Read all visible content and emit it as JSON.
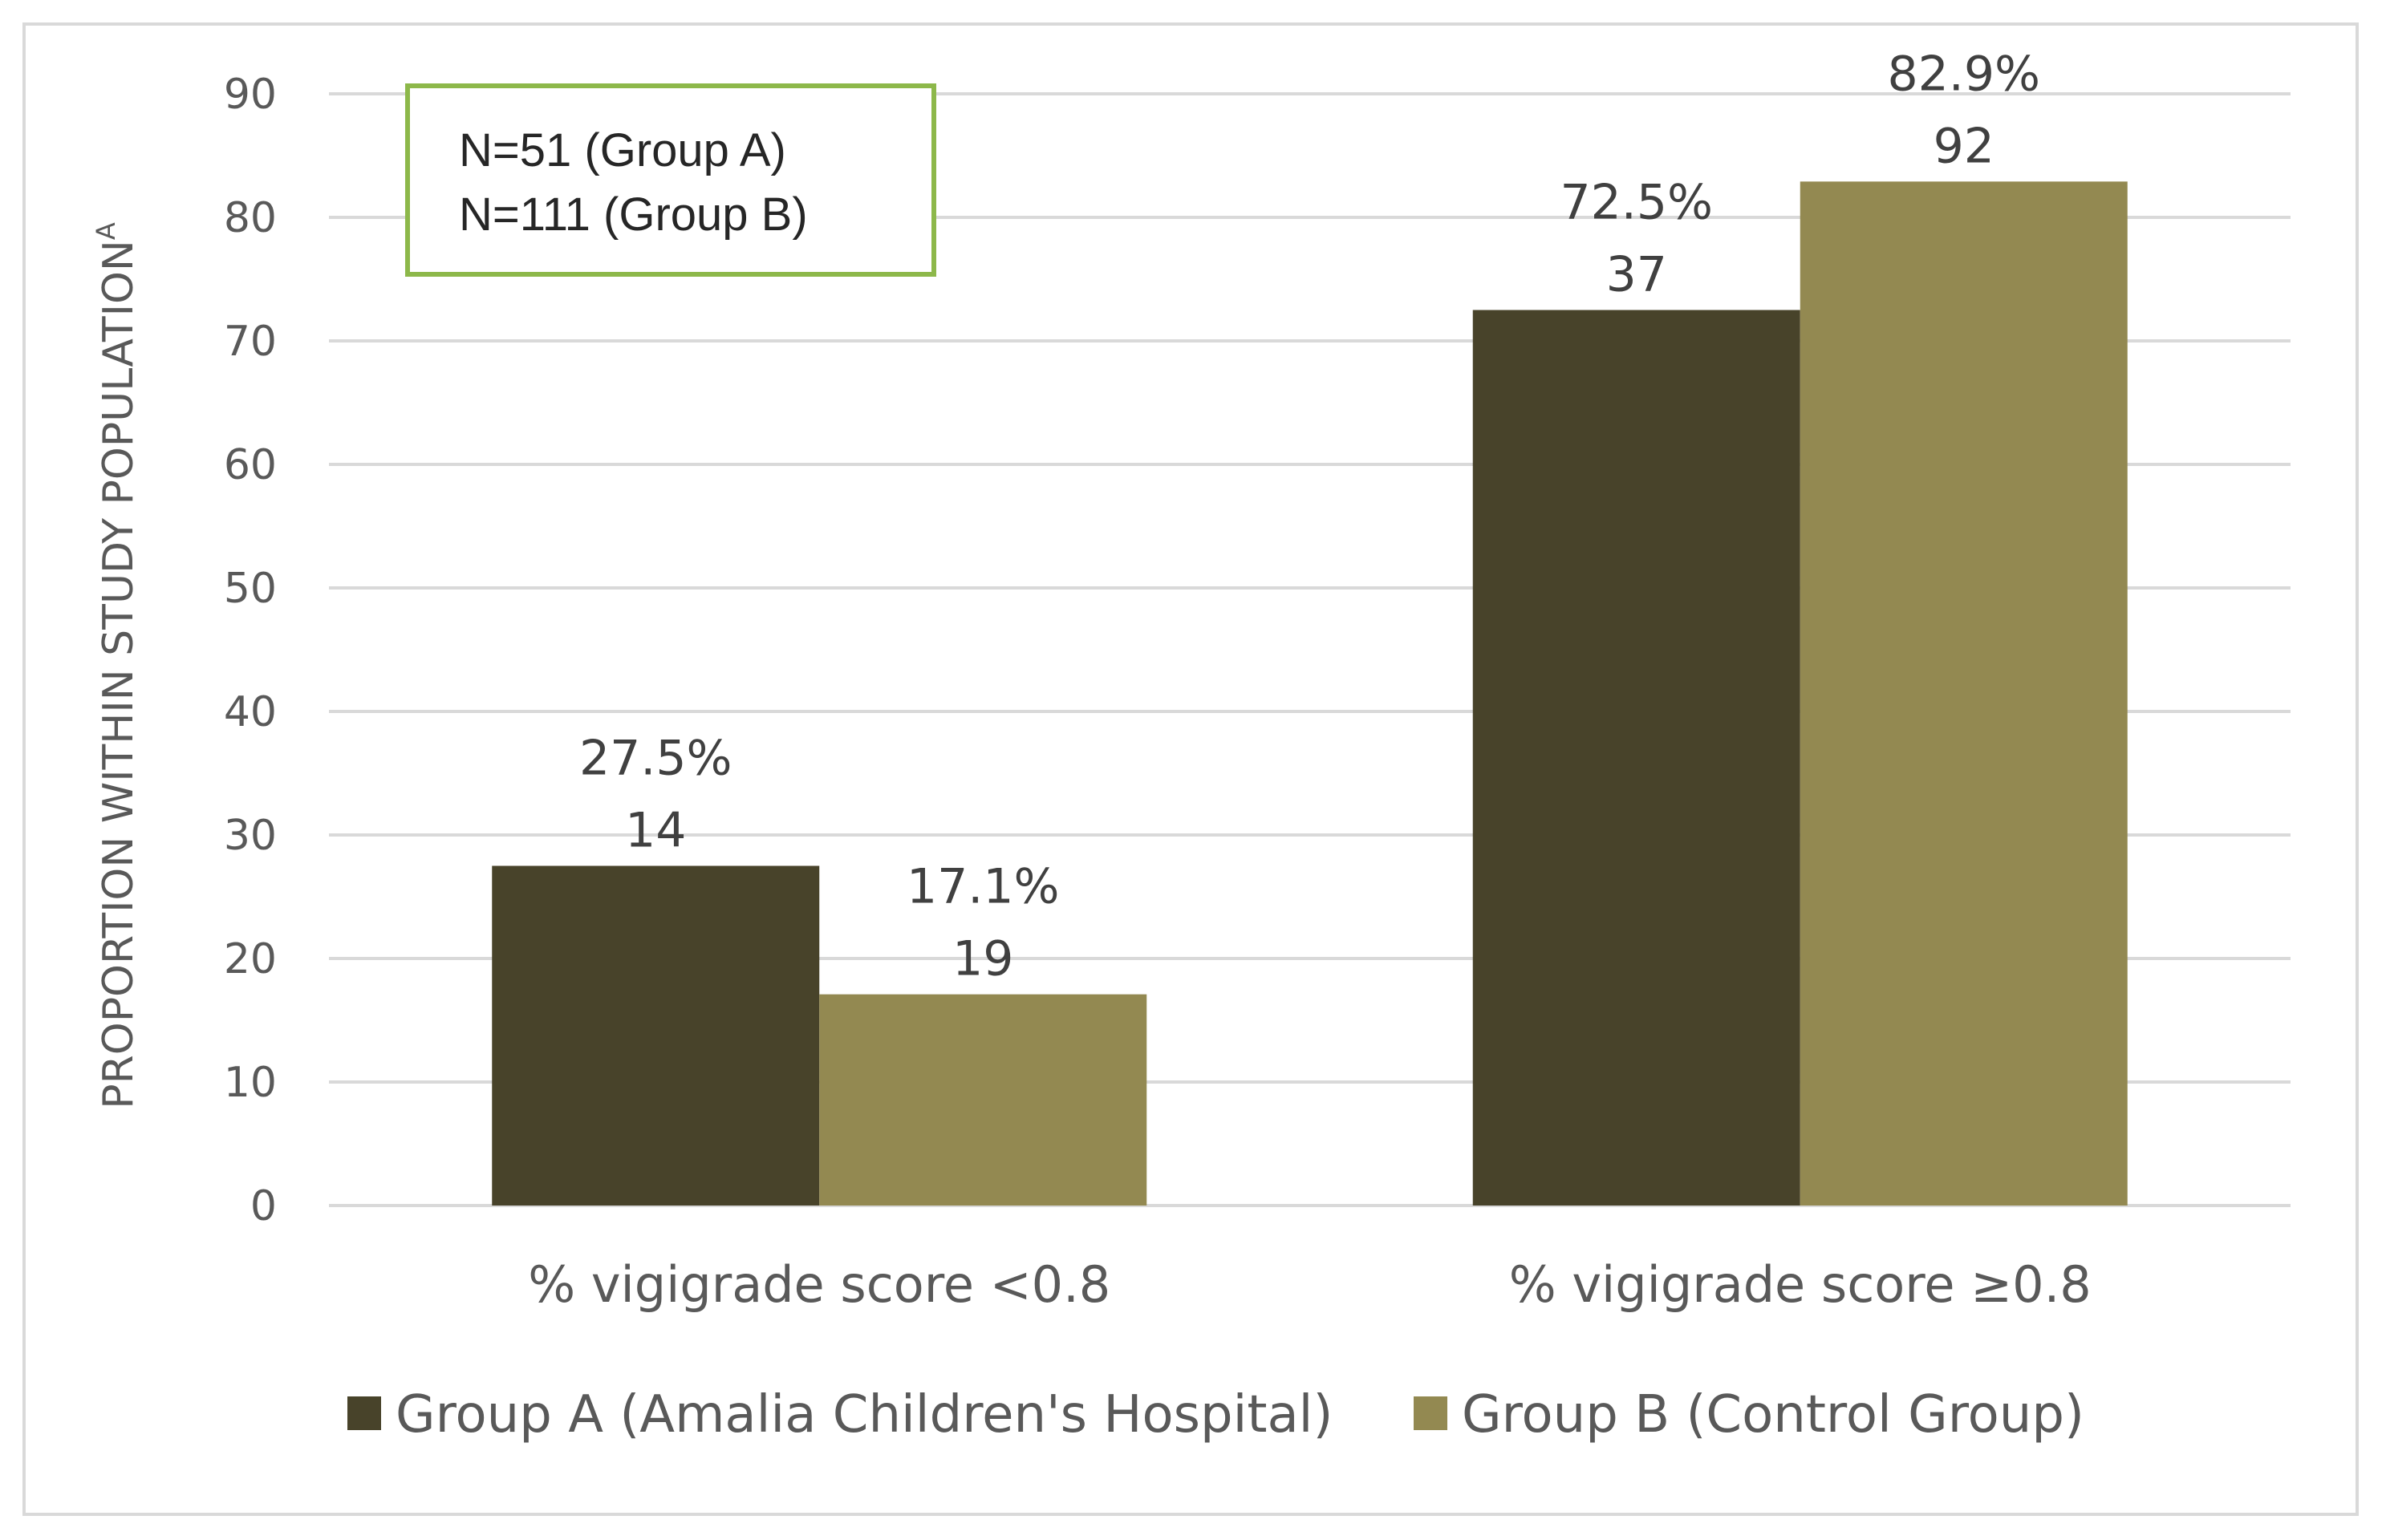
{
  "chart_data": {
    "type": "bar",
    "categories": [
      "% vigigrade score <0.8",
      "% vigigrade score ≥0.8"
    ],
    "series": [
      {
        "name": "Group A (Amalia Children's Hospital)",
        "values": [
          27.5,
          72.5
        ],
        "counts": [
          "14",
          "37"
        ],
        "percent_labels": [
          "27.5%",
          "72.5%"
        ],
        "color": "#48432a"
      },
      {
        "name": "Group B (Control Group)",
        "values": [
          17.1,
          82.9
        ],
        "counts": [
          "19",
          "92"
        ],
        "percent_labels": [
          "17.1%",
          "82.9%"
        ],
        "color": "#938951"
      }
    ],
    "ylabel": "PROPORTION WITHIN STUDY POPULATION",
    "ylabel_superscript": "A",
    "ylim": [
      0,
      90
    ],
    "yticks": [
      "0",
      "10",
      "20",
      "30",
      "40",
      "50",
      "60",
      "70",
      "80",
      "90"
    ],
    "grid": true,
    "legend_position": "bottom",
    "annotation": {
      "lines": [
        "N=51 (Group A)",
        "N=111 (Group B)"
      ],
      "border_color": "#8db84a"
    },
    "gridline_color": "#d9d9d9",
    "frame_color": "#d9d9d9"
  }
}
